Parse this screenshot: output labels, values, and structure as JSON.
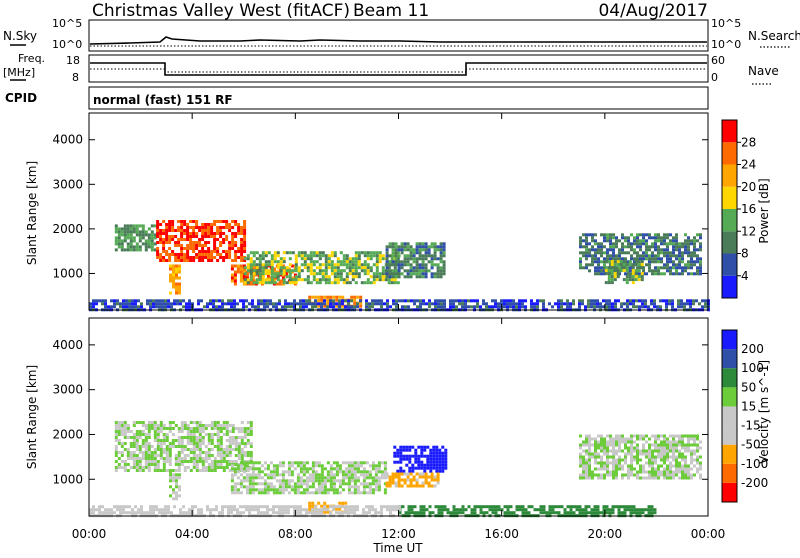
{
  "header": {
    "station": "Christmas Valley West (fitACF)",
    "beam": "Beam 11",
    "date": "04/Aug/2017"
  },
  "status": {
    "nsky_label": "N.Sky",
    "nsearch_label": "N.Search",
    "noise_ticks": [
      "10^5",
      "10^0"
    ],
    "freq_label": [
      "Freq.",
      "[MHz]"
    ],
    "freq_ticks": [
      "18",
      "8"
    ],
    "nave_label": "Nave",
    "nave_ticks": [
      "60",
      "0"
    ],
    "cpid_label": "CPID",
    "cpid_text": "normal (fast) 151 RF"
  },
  "x_axis": {
    "label": "Time UT",
    "ticks": [
      "00:00",
      "04:00",
      "08:00",
      "12:00",
      "16:00",
      "20:00",
      "00:00"
    ]
  },
  "colors": {
    "power": [
      "#1a1aff",
      "#2f4fa8",
      "#4a7c59",
      "#55aa55",
      "#ffd700",
      "#ffa500",
      "#ff6a00",
      "#ff0000"
    ],
    "velocity": [
      "#ff0000",
      "#ff6a00",
      "#ffa500",
      "#c8c8c8",
      "#c8c8c8",
      "#6ccc3a",
      "#2d8a3a",
      "#2f4fa8",
      "#1a1aff"
    ]
  },
  "chart_data": [
    {
      "type": "heatmap",
      "name": "power",
      "ylabel": "Slant Range [km]",
      "yticks": [
        1000,
        2000,
        3000,
        4000
      ],
      "ylim": [
        180,
        4600
      ],
      "xlim": [
        0,
        24
      ],
      "colorbar": {
        "label": "Power [dB]",
        "ticks": [
          4,
          8,
          12,
          16,
          20,
          24,
          28
        ],
        "range": [
          0,
          32
        ]
      },
      "regions": [
        {
          "t0": 1.0,
          "t1": 2.6,
          "r0": 1500,
          "r1": 2100,
          "level": 12
        },
        {
          "t0": 2.6,
          "t1": 6.0,
          "r0": 1300,
          "r1": 2200,
          "level": 28
        },
        {
          "t0": 3.1,
          "t1": 3.5,
          "r0": 550,
          "r1": 1200,
          "level": 22
        },
        {
          "t0": 5.5,
          "t1": 8.0,
          "r0": 750,
          "r1": 1200,
          "level": 26
        },
        {
          "t0": 6.0,
          "t1": 12.0,
          "r0": 800,
          "r1": 1500,
          "level": 14
        },
        {
          "t0": 8.5,
          "t1": 10.5,
          "r0": 280,
          "r1": 500,
          "level": 24
        },
        {
          "t0": 11.5,
          "t1": 13.8,
          "r0": 900,
          "r1": 1700,
          "level": 10
        },
        {
          "t0": 0,
          "t1": 24,
          "r0": 190,
          "r1": 420,
          "level": 6
        },
        {
          "t0": 19.0,
          "t1": 23.7,
          "r0": 1000,
          "r1": 1900,
          "level": 9
        },
        {
          "t0": 20.0,
          "t1": 21.5,
          "r0": 800,
          "r1": 1300,
          "level": 13
        }
      ]
    },
    {
      "type": "heatmap",
      "name": "velocity",
      "ylabel": "Slant Range [km]",
      "yticks": [
        1000,
        2000,
        3000,
        4000
      ],
      "ylim": [
        180,
        4600
      ],
      "xlim": [
        0,
        24
      ],
      "colorbar": {
        "label": "Velocity [m s^-1]",
        "ticks": [
          200,
          100,
          50,
          15,
          -15,
          -50,
          -100,
          -200
        ]
      },
      "regions": [
        {
          "t0": 1.0,
          "t1": 6.3,
          "r0": 1200,
          "r1": 2300,
          "v": 0
        },
        {
          "t0": 3.1,
          "t1": 3.5,
          "r0": 550,
          "r1": 1200,
          "v": 0
        },
        {
          "t0": 5.5,
          "t1": 11.5,
          "r0": 700,
          "r1": 1400,
          "v": 0
        },
        {
          "t0": 11.8,
          "t1": 13.8,
          "r0": 1200,
          "r1": 1750,
          "v": 180
        },
        {
          "t0": 11.5,
          "t1": 13.5,
          "r0": 850,
          "r1": 1150,
          "v": -60
        },
        {
          "t0": 8.5,
          "t1": 10.0,
          "r0": 280,
          "r1": 500,
          "v": -80
        },
        {
          "t0": 12.0,
          "t1": 22.0,
          "r0": 190,
          "r1": 420,
          "v": 30
        },
        {
          "t0": 0,
          "t1": 12.0,
          "r0": 190,
          "r1": 420,
          "v": -20
        },
        {
          "t0": 19.0,
          "t1": 23.7,
          "r0": 1000,
          "r1": 2000,
          "v": 0
        }
      ]
    }
  ]
}
